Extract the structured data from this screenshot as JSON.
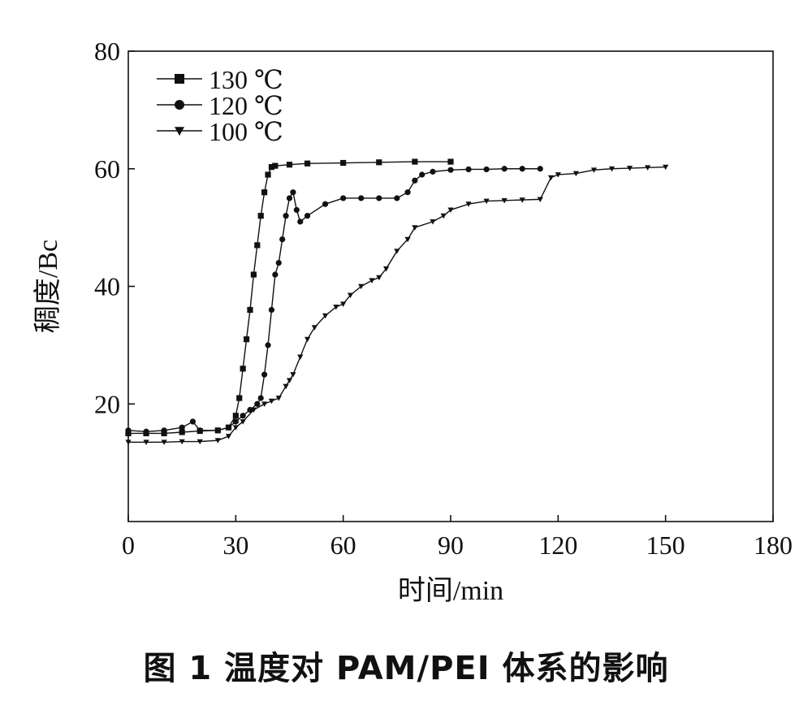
{
  "caption": "图 1 温度对 PAM/PEI 体系的影响",
  "chart_data": {
    "type": "scatter",
    "title": "",
    "xlabel": "时间/min",
    "ylabel": "稠度/Bc",
    "xlim": [
      0,
      180
    ],
    "ylim": [
      0,
      80
    ],
    "xticks": [
      0,
      30,
      60,
      90,
      120,
      150,
      180
    ],
    "yticks": [
      20,
      40,
      60,
      80
    ],
    "legend_position": "top-left",
    "series": [
      {
        "name": "130 ℃",
        "marker": "square",
        "color": "#111111",
        "x": [
          0,
          5,
          10,
          15,
          20,
          25,
          28,
          30,
          31,
          32,
          33,
          34,
          35,
          36,
          37,
          38,
          39,
          40,
          41,
          45,
          50,
          60,
          70,
          80,
          90
        ],
        "y": [
          15,
          15,
          15,
          15.2,
          15.4,
          15.5,
          16,
          18,
          21,
          26,
          31,
          36,
          42,
          47,
          52,
          56,
          59,
          60.3,
          60.5,
          60.7,
          60.9,
          61,
          61.1,
          61.2,
          61.2
        ]
      },
      {
        "name": "120 ℃",
        "marker": "circle",
        "color": "#111111",
        "x": [
          0,
          5,
          10,
          15,
          18,
          20,
          25,
          28,
          30,
          32,
          34,
          36,
          37,
          38,
          39,
          40,
          41,
          42,
          43,
          44,
          45,
          46,
          47,
          48,
          50,
          55,
          60,
          65,
          70,
          75,
          78,
          80,
          82,
          85,
          90,
          95,
          100,
          105,
          110,
          115
        ],
        "y": [
          15.5,
          15.3,
          15.5,
          16,
          17,
          15.5,
          15.5,
          16,
          17,
          18,
          19,
          20,
          21,
          25,
          30,
          36,
          42,
          44,
          48,
          52,
          55,
          56,
          53,
          51,
          52,
          54,
          55,
          55,
          55,
          55,
          56,
          58,
          59,
          59.5,
          59.8,
          59.9,
          59.9,
          60,
          60,
          60
        ]
      },
      {
        "name": "100 ℃",
        "marker": "triangle-down",
        "color": "#111111",
        "x": [
          0,
          5,
          10,
          15,
          20,
          25,
          28,
          30,
          32,
          35,
          38,
          40,
          42,
          44,
          45,
          46,
          48,
          50,
          52,
          55,
          58,
          60,
          62,
          65,
          68,
          70,
          72,
          75,
          78,
          80,
          85,
          88,
          90,
          95,
          100,
          105,
          110,
          115,
          118,
          120,
          125,
          130,
          135,
          140,
          145,
          150
        ],
        "y": [
          13.5,
          13.5,
          13.5,
          13.6,
          13.6,
          13.8,
          14.5,
          16,
          17,
          19,
          20,
          20.5,
          21,
          23,
          24,
          25,
          28,
          31,
          33,
          35,
          36.5,
          37,
          38.5,
          40,
          41,
          41.5,
          43,
          46,
          48,
          50,
          51,
          52,
          53,
          54,
          54.5,
          54.6,
          54.7,
          54.8,
          58.5,
          59,
          59.2,
          59.8,
          60,
          60.1,
          60.2,
          60.3
        ]
      }
    ]
  }
}
